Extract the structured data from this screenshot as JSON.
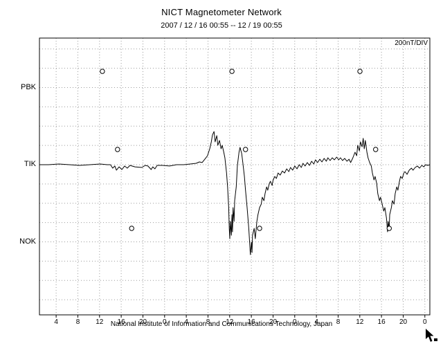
{
  "header": {
    "title": "NICT Magnetometer Network",
    "subtitle": "2007 / 12 / 16  00:55 -- 12 / 19  00:55"
  },
  "plot": {
    "unit_label": "200nT/DIV"
  },
  "footer": {
    "caption": "National Institute of Information and Communications Technology, Japan"
  },
  "colors": {
    "background": "#ffffff",
    "trace": "#000000",
    "grid": "#9a9a9a",
    "frame": "#000000"
  },
  "chart_data": {
    "type": "line",
    "title": "NICT Magnetometer Network",
    "time_axis": {
      "start": "2007/12/16 00:55",
      "end": "2007/12/19 00:55",
      "hours_span": 72,
      "tick_labels": [
        "4",
        "8",
        "12",
        "16",
        "20",
        "0",
        "4",
        "8",
        "12",
        "16",
        "20",
        "0",
        "4",
        "8",
        "12",
        "16",
        "20",
        "0"
      ],
      "tick_hours": [
        3.08,
        7.08,
        11.08,
        15.08,
        19.08,
        23.08,
        27.08,
        31.08,
        35.08,
        39.08,
        43.08,
        47.08,
        51.08,
        55.08,
        59.08,
        63.08,
        67.08,
        71.08
      ]
    },
    "y_axis": {
      "unit": "nT",
      "division_nT": 200,
      "ylim": [
        -1557,
        1313
      ],
      "stations": [
        {
          "label": "PBK",
          "baseline_nT": 800
        },
        {
          "label": "TIK",
          "baseline_nT": 0
        },
        {
          "label": "NOK",
          "baseline_nT": -800
        }
      ]
    },
    "series": [
      {
        "name": "TIK magnetogram",
        "points": [
          [
            0,
            0
          ],
          [
            1.7,
            0
          ],
          [
            3.6,
            7
          ],
          [
            5.5,
            0
          ],
          [
            7.4,
            -7
          ],
          [
            9.3,
            0
          ],
          [
            11.2,
            7
          ],
          [
            12.5,
            0
          ],
          [
            13.1,
            0
          ],
          [
            13.5,
            -36
          ],
          [
            13.9,
            -14
          ],
          [
            14.2,
            -57
          ],
          [
            14.7,
            -22
          ],
          [
            15.2,
            -50
          ],
          [
            15.7,
            -14
          ],
          [
            16.2,
            -36
          ],
          [
            16.7,
            -7
          ],
          [
            17.6,
            -22
          ],
          [
            18.9,
            -29
          ],
          [
            19.5,
            -7
          ],
          [
            20,
            -14
          ],
          [
            20.6,
            -50
          ],
          [
            20.9,
            -22
          ],
          [
            21.3,
            -43
          ],
          [
            21.7,
            -7
          ],
          [
            22.7,
            -7
          ],
          [
            24,
            -14
          ],
          [
            25.3,
            0
          ],
          [
            26.6,
            0
          ],
          [
            27.8,
            7
          ],
          [
            28.9,
            14
          ],
          [
            29.5,
            29
          ],
          [
            30,
            22
          ],
          [
            30.5,
            57
          ],
          [
            31,
            93
          ],
          [
            31.4,
            165
          ],
          [
            31.7,
            237
          ],
          [
            31.9,
            308
          ],
          [
            32.2,
            344
          ],
          [
            32.4,
            237
          ],
          [
            32.7,
            301
          ],
          [
            32.9,
            201
          ],
          [
            33.2,
            251
          ],
          [
            33.5,
            165
          ],
          [
            33.7,
            201
          ],
          [
            34,
            129
          ],
          [
            34.2,
            72
          ],
          [
            34.5,
            -86
          ],
          [
            34.7,
            -230
          ],
          [
            34.9,
            -445
          ],
          [
            35,
            -660
          ],
          [
            35.1,
            -768
          ],
          [
            35.2,
            -588
          ],
          [
            35.4,
            -732
          ],
          [
            35.5,
            -517
          ],
          [
            35.6,
            -696
          ],
          [
            35.7,
            -445
          ],
          [
            35.9,
            -588
          ],
          [
            36,
            -373
          ],
          [
            36.3,
            -230
          ],
          [
            36.5,
            -14
          ],
          [
            36.8,
            129
          ],
          [
            37,
            179
          ],
          [
            37.3,
            115
          ],
          [
            37.5,
            22
          ],
          [
            37.8,
            -122
          ],
          [
            38,
            -265
          ],
          [
            38.3,
            -445
          ],
          [
            38.6,
            -660
          ],
          [
            38.8,
            -839
          ],
          [
            38.9,
            -933
          ],
          [
            39.1,
            -803
          ],
          [
            39.2,
            -911
          ],
          [
            39.3,
            -732
          ],
          [
            39.6,
            -660
          ],
          [
            39.8,
            -768
          ],
          [
            40.1,
            -588
          ],
          [
            40.3,
            -517
          ],
          [
            40.6,
            -445
          ],
          [
            40.9,
            -409
          ],
          [
            41.1,
            -337
          ],
          [
            41.4,
            -373
          ],
          [
            41.6,
            -301
          ],
          [
            41.9,
            -230
          ],
          [
            42.1,
            -265
          ],
          [
            42.4,
            -194
          ],
          [
            42.6,
            -172
          ],
          [
            42.9,
            -215
          ],
          [
            43.1,
            -158
          ],
          [
            43.4,
            -122
          ],
          [
            43.7,
            -143
          ],
          [
            44,
            -86
          ],
          [
            44.4,
            -108
          ],
          [
            44.8,
            -65
          ],
          [
            45.2,
            -86
          ],
          [
            45.6,
            -43
          ],
          [
            46,
            -72
          ],
          [
            46.3,
            -29
          ],
          [
            46.7,
            -57
          ],
          [
            47.1,
            -14
          ],
          [
            47.5,
            -43
          ],
          [
            47.9,
            0
          ],
          [
            48.3,
            -29
          ],
          [
            48.6,
            14
          ],
          [
            49,
            -14
          ],
          [
            49.4,
            22
          ],
          [
            49.8,
            -7
          ],
          [
            50.2,
            36
          ],
          [
            50.6,
            7
          ],
          [
            50.9,
            50
          ],
          [
            51.3,
            22
          ],
          [
            51.7,
            57
          ],
          [
            52.1,
            29
          ],
          [
            52.5,
            65
          ],
          [
            52.9,
            36
          ],
          [
            53.2,
            72
          ],
          [
            53.6,
            43
          ],
          [
            54,
            72
          ],
          [
            54.4,
            50
          ],
          [
            54.8,
            79
          ],
          [
            55.2,
            50
          ],
          [
            55.5,
            72
          ],
          [
            55.9,
            43
          ],
          [
            56.3,
            65
          ],
          [
            56.7,
            36
          ],
          [
            57.1,
            57
          ],
          [
            57.4,
            22
          ],
          [
            57.8,
            72
          ],
          [
            58.2,
            129
          ],
          [
            58.5,
            93
          ],
          [
            58.7,
            201
          ],
          [
            59,
            143
          ],
          [
            59.2,
            237
          ],
          [
            59.5,
            186
          ],
          [
            59.7,
            273
          ],
          [
            59.9,
            165
          ],
          [
            60.1,
            251
          ],
          [
            60.4,
            129
          ],
          [
            60.6,
            72
          ],
          [
            60.9,
            22
          ],
          [
            61.2,
            -14
          ],
          [
            61.4,
            -86
          ],
          [
            61.7,
            -158
          ],
          [
            61.9,
            -122
          ],
          [
            62.2,
            -194
          ],
          [
            62.4,
            -301
          ],
          [
            62.7,
            -373
          ],
          [
            62.9,
            -337
          ],
          [
            63.2,
            -409
          ],
          [
            63.5,
            -481
          ],
          [
            63.7,
            -445
          ],
          [
            64,
            -552
          ],
          [
            64.2,
            -696
          ],
          [
            64.3,
            -588
          ],
          [
            64.5,
            -660
          ],
          [
            64.6,
            -517
          ],
          [
            64.9,
            -445
          ],
          [
            65.1,
            -373
          ],
          [
            65.4,
            -409
          ],
          [
            65.6,
            -301
          ],
          [
            65.9,
            -230
          ],
          [
            66.1,
            -265
          ],
          [
            66.4,
            -172
          ],
          [
            66.6,
            -122
          ],
          [
            66.9,
            -143
          ],
          [
            67.2,
            -86
          ],
          [
            67.4,
            -72
          ],
          [
            67.8,
            -100
          ],
          [
            68.2,
            -57
          ],
          [
            68.6,
            -36
          ],
          [
            68.9,
            -57
          ],
          [
            69.3,
            -29
          ],
          [
            69.7,
            -14
          ],
          [
            70.1,
            -36
          ],
          [
            70.5,
            -7
          ],
          [
            70.9,
            -22
          ],
          [
            71.2,
            0
          ],
          [
            71.6,
            -7
          ],
          [
            72,
            0
          ]
        ]
      }
    ],
    "markers": {
      "shape": "circle",
      "points": [
        {
          "station": "PBK",
          "t": 11.6,
          "nT": 968
        },
        {
          "station": "PBK",
          "t": 35.5,
          "nT": 968
        },
        {
          "station": "PBK",
          "t": 59.1,
          "nT": 968
        },
        {
          "station": "TIK",
          "t": 14.4,
          "nT": 158
        },
        {
          "station": "TIK",
          "t": 38.0,
          "nT": 158
        },
        {
          "station": "TIK",
          "t": 62.0,
          "nT": 158
        },
        {
          "station": "NOK",
          "t": 17.0,
          "nT": -660
        },
        {
          "station": "NOK",
          "t": 40.6,
          "nT": -660
        },
        {
          "station": "NOK",
          "t": 64.5,
          "nT": -660
        }
      ]
    },
    "layout_hints": {
      "grid": "dotted",
      "legend": "none",
      "frame": "box"
    }
  }
}
